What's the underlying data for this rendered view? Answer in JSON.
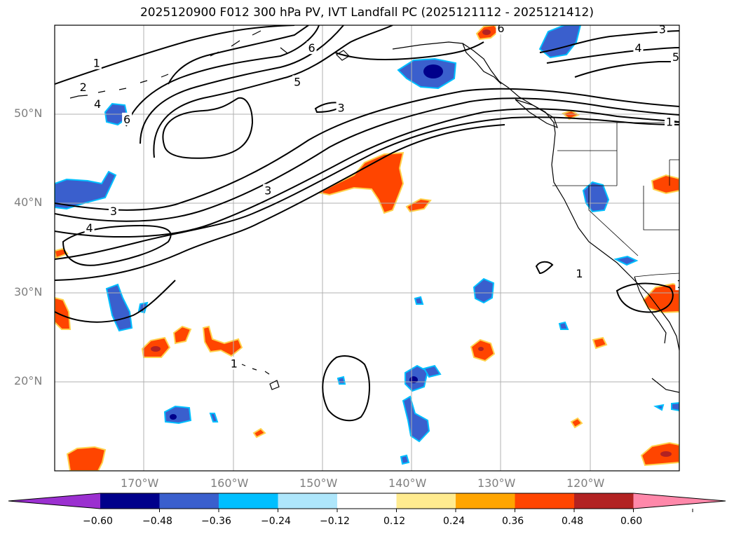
{
  "title": "2025120900 F012 300 hPa PV, IVT Landfall PC (2025121112 - 2025121412)",
  "axes": {
    "lon_labels": [
      "170°W",
      "160°W",
      "150°W",
      "140°W",
      "130°W",
      "120°W"
    ],
    "lon_values": [
      -170,
      -160,
      -150,
      -140,
      -130,
      -120
    ],
    "lat_labels": [
      "50°N",
      "40°N",
      "30°N",
      "20°N"
    ],
    "lat_values": [
      50,
      40,
      30,
      20
    ],
    "lon_range": [
      -180,
      -110
    ],
    "lat_range": [
      10,
      60
    ]
  },
  "colorbar": {
    "tick_labels": [
      "−0.60",
      "−0.48",
      "−0.36",
      "−0.24",
      "−0.12",
      "0.12",
      "0.24",
      "0.36",
      "0.48",
      "0.60"
    ],
    "tick_values": [
      -0.6,
      -0.48,
      -0.36,
      -0.24,
      -0.12,
      0.12,
      0.24,
      0.36,
      0.48,
      0.6
    ],
    "colors": [
      "#9b30d0",
      "#00008b",
      "#3a5fcd",
      "#00bfff",
      "#aee6fb",
      "#ffffff",
      "#ffeb8f",
      "#ffa500",
      "#ff4500",
      "#b22222",
      "#ff88aa"
    ]
  },
  "pv_contour_labels": [
    "1",
    "2",
    "3",
    "4",
    "5",
    "6"
  ],
  "contour_label_instances": [
    {
      "text": "1",
      "lon": -175.3,
      "lat": 55.7
    },
    {
      "text": "2",
      "lon": -176.8,
      "lat": 53.0
    },
    {
      "text": "4",
      "lon": -175.2,
      "lat": 51.1
    },
    {
      "text": "6",
      "lon": -171.9,
      "lat": 49.4
    },
    {
      "text": "6",
      "lon": -151.2,
      "lat": 57.4
    },
    {
      "text": "5",
      "lon": -152.8,
      "lat": 53.6
    },
    {
      "text": "3",
      "lon": -147.9,
      "lat": 50.7
    },
    {
      "text": "3",
      "lon": -156.1,
      "lat": 41.4
    },
    {
      "text": "3",
      "lon": -173.4,
      "lat": 39.1
    },
    {
      "text": "4",
      "lon": -176.1,
      "lat": 37.2
    },
    {
      "text": "6",
      "lon": -130.0,
      "lat": 59.6
    },
    {
      "text": "3",
      "lon": -111.9,
      "lat": 59.5
    },
    {
      "text": "4",
      "lon": -114.6,
      "lat": 57.4
    },
    {
      "text": "5",
      "lon": -110.4,
      "lat": 56.4
    },
    {
      "text": "1",
      "lon": -111.1,
      "lat": 49.1
    },
    {
      "text": "1",
      "lon": -121.2,
      "lat": 32.1
    },
    {
      "text": "1",
      "lon": -109.9,
      "lat": 30.9
    },
    {
      "text": "1",
      "lon": -159.9,
      "lat": 22.0
    }
  ]
}
